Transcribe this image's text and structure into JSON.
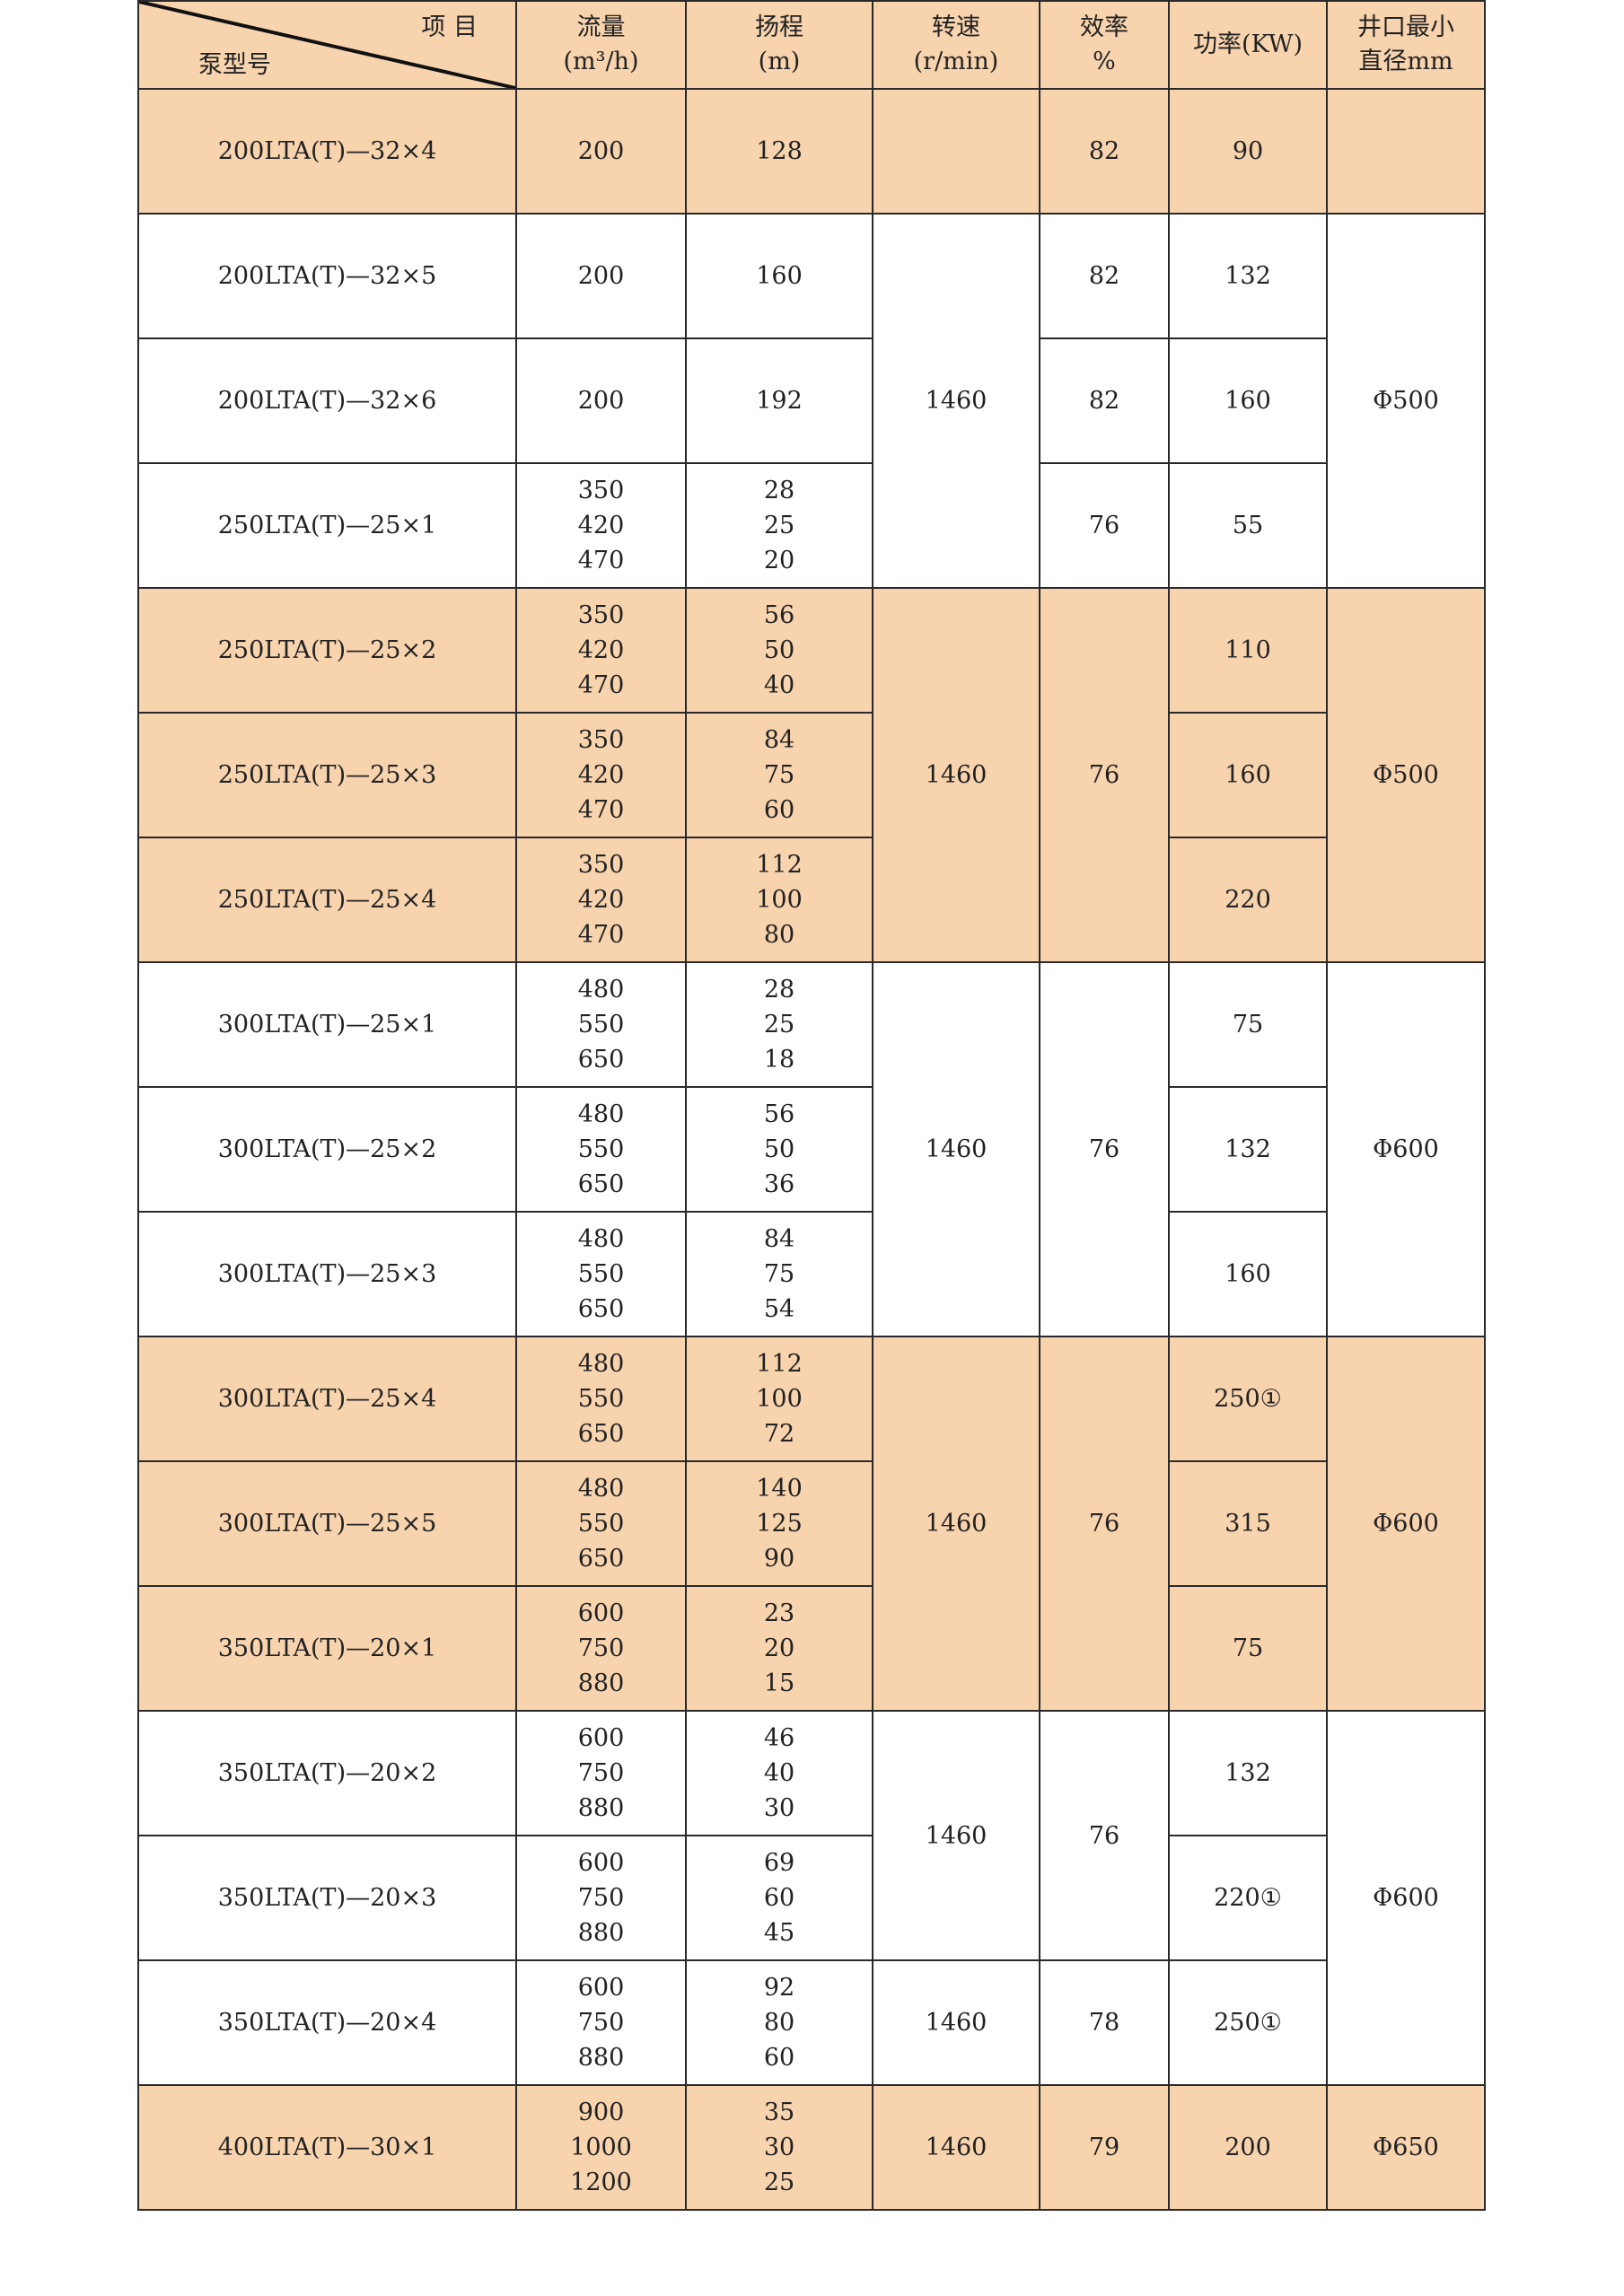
{
  "header": {
    "item_label": "项 目",
    "model_label": "泵型号",
    "flow": [
      "流量",
      "(m³/h)"
    ],
    "head": [
      "扬程",
      "(m)"
    ],
    "speed": [
      "转速",
      "(r/min)"
    ],
    "efficiency": [
      "效率",
      "%"
    ],
    "power": [
      "功率(KW)"
    ],
    "diameter": [
      "井口最小",
      "直径mm"
    ]
  },
  "colors": {
    "shaded": "#f7d3ae",
    "border": "#2a2a2a"
  },
  "rows": [
    {
      "model": "200LTA(T)—32×4",
      "flow": [
        "200"
      ],
      "head": [
        "128"
      ],
      "rpm": "",
      "efficiency": "82",
      "power": "90",
      "diameter": ""
    },
    {
      "model": "200LTA(T)—32×5",
      "flow": [
        "200"
      ],
      "head": [
        "160"
      ],
      "rpm": "1460",
      "efficiency": "82",
      "power": "132",
      "diameter": "Φ500"
    },
    {
      "model": "200LTA(T)—32×6",
      "flow": [
        "200"
      ],
      "head": [
        "192"
      ],
      "efficiency": "82",
      "power": "160"
    },
    {
      "model": "250LTA(T)—25×1",
      "flow": [
        "350",
        "420",
        "470"
      ],
      "head": [
        "28",
        "25",
        "20"
      ],
      "efficiency": "76",
      "power": "55"
    },
    {
      "model": "250LTA(T)—25×2",
      "flow": [
        "350",
        "420",
        "470"
      ],
      "head": [
        "56",
        "50",
        "40"
      ],
      "rpm": "1460",
      "efficiency": "76",
      "power": "110",
      "diameter": "Φ500"
    },
    {
      "model": "250LTA(T)—25×3",
      "flow": [
        "350",
        "420",
        "470"
      ],
      "head": [
        "84",
        "75",
        "60"
      ],
      "power": "160"
    },
    {
      "model": "250LTA(T)—25×4",
      "flow": [
        "350",
        "420",
        "470"
      ],
      "head": [
        "112",
        "100",
        "80"
      ],
      "power": "220"
    },
    {
      "model": "300LTA(T)—25×1",
      "flow": [
        "480",
        "550",
        "650"
      ],
      "head": [
        "28",
        "25",
        "18"
      ],
      "rpm": "1460",
      "efficiency": "76",
      "power": "75",
      "diameter": "Φ600"
    },
    {
      "model": "300LTA(T)—25×2",
      "flow": [
        "480",
        "550",
        "650"
      ],
      "head": [
        "56",
        "50",
        "36"
      ],
      "power": "132"
    },
    {
      "model": "300LTA(T)—25×3",
      "flow": [
        "480",
        "550",
        "650"
      ],
      "head": [
        "84",
        "75",
        "54"
      ],
      "power": "160"
    },
    {
      "model": "300LTA(T)—25×4",
      "flow": [
        "480",
        "550",
        "650"
      ],
      "head": [
        "112",
        "100",
        "72"
      ],
      "rpm": "1460",
      "efficiency": "76",
      "power": "250①",
      "diameter": "Φ600"
    },
    {
      "model": "300LTA(T)—25×5",
      "flow": [
        "480",
        "550",
        "650"
      ],
      "head": [
        "140",
        "125",
        "90"
      ],
      "power": "315"
    },
    {
      "model": "350LTA(T)—20×1",
      "flow": [
        "600",
        "750",
        "880"
      ],
      "head": [
        "23",
        "20",
        "15"
      ],
      "power": "75"
    },
    {
      "model": "350LTA(T)—20×2",
      "flow": [
        "600",
        "750",
        "880"
      ],
      "head": [
        "46",
        "40",
        "30"
      ],
      "rpm": "1460",
      "efficiency": "76",
      "power": "132",
      "diameter": "Φ600"
    },
    {
      "model": "350LTA(T)—20×3",
      "flow": [
        "600",
        "750",
        "880"
      ],
      "head": [
        "69",
        "60",
        "45"
      ],
      "power": "220①"
    },
    {
      "model": "350LTA(T)—20×4",
      "flow": [
        "600",
        "750",
        "880"
      ],
      "head": [
        "92",
        "80",
        "60"
      ],
      "rpm": "1460",
      "efficiency": "78",
      "power": "250①"
    },
    {
      "model": "400LTA(T)—30×1",
      "flow": [
        "900",
        "1000",
        "1200"
      ],
      "head": [
        "35",
        "30",
        "25"
      ],
      "rpm": "1460",
      "efficiency": "79",
      "power": "200",
      "diameter": "Φ650"
    }
  ]
}
